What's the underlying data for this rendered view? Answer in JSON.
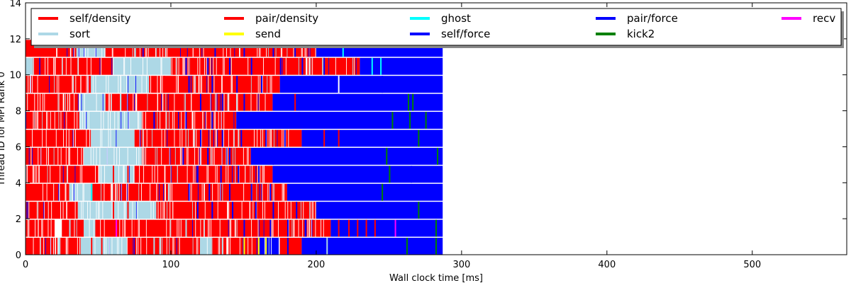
{
  "chart_data": {
    "type": "bar",
    "orientation": "horizontal-timeline",
    "title": "",
    "xlabel": "Wall clock time [ms]",
    "ylabel": "Thread ID for MPI Rank 0",
    "xlim": [
      0,
      565
    ],
    "ylim": [
      0,
      14
    ],
    "x_ticks": [
      0,
      100,
      200,
      300,
      400,
      500
    ],
    "y_ticks": [
      0,
      2,
      4,
      6,
      8,
      10,
      12,
      14
    ],
    "grid": false,
    "legend": {
      "placement": "top",
      "columns": 5,
      "entries": [
        {
          "name": "self/density",
          "color": "#ff0000"
        },
        {
          "name": "sort",
          "color": "#add8e6"
        },
        {
          "name": "pair/density",
          "color": "#ff0000"
        },
        {
          "name": "send",
          "color": "#ffff00"
        },
        {
          "name": "ghost",
          "color": "#00ffff"
        },
        {
          "name": "self/force",
          "color": "#0000ff"
        },
        {
          "name": "pair/force",
          "color": "#0000ff"
        },
        {
          "name": "kick2",
          "color": "#008000"
        },
        {
          "name": "recv",
          "color": "#ff00ff"
        }
      ]
    },
    "threads": [
      {
        "id": 0,
        "end": 287,
        "segments": [
          [
            0,
            22,
            "#ff0000"
          ],
          [
            22,
            24,
            "#add8e6"
          ],
          [
            24,
            38,
            "#ff0000"
          ],
          [
            38,
            70,
            "#add8e6"
          ],
          [
            70,
            120,
            "#ff0000"
          ],
          [
            120,
            128,
            "#add8e6"
          ],
          [
            128,
            160,
            "#ff0000"
          ],
          [
            160,
            175,
            "#0000ff"
          ],
          [
            175,
            190,
            "#ff0000"
          ],
          [
            190,
            287,
            "#0000ff"
          ]
        ],
        "ticks": [
          [
            45,
            "#ff0000"
          ],
          [
            52,
            "#ff0000"
          ],
          [
            88,
            "#add8e6"
          ],
          [
            92,
            "#add8e6"
          ],
          [
            135,
            "#add8e6"
          ],
          [
            150,
            "#ffff00"
          ],
          [
            160,
            "#ffff00"
          ],
          [
            165,
            "#ffff00"
          ],
          [
            180,
            "#0000ff"
          ],
          [
            207,
            "#add8e6"
          ],
          [
            262,
            "#008000"
          ],
          [
            282,
            "#008000"
          ]
        ]
      },
      {
        "id": 1,
        "end": 287,
        "segments": [
          [
            0,
            20,
            "#ff0000"
          ],
          [
            20,
            25,
            "#ffffff"
          ],
          [
            25,
            40,
            "#ff0000"
          ],
          [
            40,
            48,
            "#add8e6"
          ],
          [
            48,
            75,
            "#ff0000"
          ],
          [
            75,
            210,
            "#ff0000"
          ],
          [
            210,
            287,
            "#0000ff"
          ]
        ],
        "ticks": [
          [
            30,
            "#add8e6"
          ],
          [
            62,
            "#ff00ff"
          ],
          [
            110,
            "#add8e6"
          ],
          [
            150,
            "#0000ff"
          ],
          [
            168,
            "#0000ff"
          ],
          [
            180,
            "#0000ff"
          ],
          [
            192,
            "#0000ff"
          ],
          [
            215,
            "#ff0000"
          ],
          [
            222,
            "#ff0000"
          ],
          [
            228,
            "#ff0000"
          ],
          [
            234,
            "#ff0000"
          ],
          [
            240,
            "#ff0000"
          ],
          [
            254,
            "#ff00ff"
          ],
          [
            282,
            "#008000"
          ]
        ]
      },
      {
        "id": 2,
        "end": 287,
        "segments": [
          [
            0,
            36,
            "#ff0000"
          ],
          [
            36,
            90,
            "#add8e6"
          ],
          [
            90,
            200,
            "#ff0000"
          ],
          [
            200,
            287,
            "#0000ff"
          ]
        ],
        "ticks": [
          [
            60,
            "#ff0000"
          ],
          [
            70,
            "#ff0000"
          ],
          [
            118,
            "#0000ff"
          ],
          [
            128,
            "#0000ff"
          ],
          [
            142,
            "#0000ff"
          ],
          [
            158,
            "#0000ff"
          ],
          [
            170,
            "#0000ff"
          ],
          [
            186,
            "#0000ff"
          ],
          [
            270,
            "#008000"
          ]
        ]
      },
      {
        "id": 3,
        "end": 287,
        "segments": [
          [
            0,
            30,
            "#ff0000"
          ],
          [
            30,
            45,
            "#add8e6"
          ],
          [
            45,
            85,
            "#ff0000"
          ],
          [
            85,
            180,
            "#ff0000"
          ],
          [
            180,
            287,
            "#0000ff"
          ]
        ],
        "ticks": [
          [
            45,
            "#00ffff"
          ],
          [
            55,
            "#ff0000"
          ],
          [
            98,
            "#add8e6"
          ],
          [
            112,
            "#0000ff"
          ],
          [
            126,
            "#0000ff"
          ],
          [
            140,
            "#0000ff"
          ],
          [
            155,
            "#0000ff"
          ],
          [
            168,
            "#0000ff"
          ],
          [
            245,
            "#008000"
          ]
        ]
      },
      {
        "id": 4,
        "end": 287,
        "segments": [
          [
            0,
            50,
            "#ff0000"
          ],
          [
            50,
            75,
            "#add8e6"
          ],
          [
            75,
            170,
            "#ff0000"
          ],
          [
            170,
            287,
            "#0000ff"
          ]
        ],
        "ticks": [
          [
            60,
            "#ff0000"
          ],
          [
            70,
            "#ff0000"
          ],
          [
            118,
            "#0000ff"
          ],
          [
            134,
            "#0000ff"
          ],
          [
            146,
            "#0000ff"
          ],
          [
            160,
            "#0000ff"
          ],
          [
            250,
            "#008000"
          ],
          [
            265,
            "#0000ff"
          ]
        ]
      },
      {
        "id": 5,
        "end": 287,
        "segments": [
          [
            0,
            40,
            "#ff0000"
          ],
          [
            40,
            80,
            "#add8e6"
          ],
          [
            80,
            155,
            "#ff0000"
          ],
          [
            155,
            287,
            "#0000ff"
          ]
        ],
        "ticks": [
          [
            88,
            "#ff0000"
          ],
          [
            108,
            "#0000ff"
          ],
          [
            125,
            "#0000ff"
          ],
          [
            140,
            "#0000ff"
          ],
          [
            170,
            "#0000ff"
          ],
          [
            248,
            "#008000"
          ],
          [
            283,
            "#008000"
          ]
        ]
      },
      {
        "id": 6,
        "end": 287,
        "segments": [
          [
            0,
            45,
            "#ff0000"
          ],
          [
            45,
            75,
            "#add8e6"
          ],
          [
            75,
            190,
            "#ff0000"
          ],
          [
            190,
            287,
            "#0000ff"
          ]
        ],
        "ticks": [
          [
            82,
            "#ff0000"
          ],
          [
            120,
            "#0000ff"
          ],
          [
            135,
            "#0000ff"
          ],
          [
            148,
            "#0000ff"
          ],
          [
            165,
            "#0000ff"
          ],
          [
            178,
            "#0000ff"
          ],
          [
            205,
            "#ff0000"
          ],
          [
            215,
            "#ff0000"
          ],
          [
            270,
            "#008000"
          ]
        ]
      },
      {
        "id": 7,
        "end": 287,
        "segments": [
          [
            0,
            37,
            "#ff0000"
          ],
          [
            37,
            80,
            "#add8e6"
          ],
          [
            80,
            145,
            "#ff0000"
          ],
          [
            145,
            287,
            "#0000ff"
          ]
        ],
        "ticks": [
          [
            88,
            "#0000ff"
          ],
          [
            110,
            "#0000ff"
          ],
          [
            128,
            "#0000ff"
          ],
          [
            188,
            "#0000ff"
          ],
          [
            252,
            "#008000"
          ],
          [
            264,
            "#008000"
          ],
          [
            275,
            "#008000"
          ]
        ]
      },
      {
        "id": 8,
        "end": 287,
        "segments": [
          [
            0,
            37,
            "#ff0000"
          ],
          [
            37,
            55,
            "#add8e6"
          ],
          [
            55,
            170,
            "#ff0000"
          ],
          [
            170,
            287,
            "#0000ff"
          ]
        ],
        "ticks": [
          [
            65,
            "#add8e6"
          ],
          [
            120,
            "#0000ff"
          ],
          [
            135,
            "#0000ff"
          ],
          [
            150,
            "#0000ff"
          ],
          [
            185,
            "#ff0000"
          ],
          [
            263,
            "#008000"
          ],
          [
            266,
            "#008000"
          ]
        ]
      },
      {
        "id": 9,
        "end": 287,
        "segments": [
          [
            0,
            45,
            "#ff0000"
          ],
          [
            45,
            85,
            "#add8e6"
          ],
          [
            85,
            175,
            "#ff0000"
          ],
          [
            175,
            287,
            "#0000ff"
          ]
        ],
        "ticks": [
          [
            95,
            "#ff0000"
          ],
          [
            112,
            "#0000ff"
          ],
          [
            128,
            "#0000ff"
          ],
          [
            145,
            "#0000ff"
          ],
          [
            162,
            "#0000ff"
          ],
          [
            215,
            "#ffffff"
          ],
          [
            245,
            "#0000ff"
          ]
        ]
      },
      {
        "id": 10,
        "end": 287,
        "segments": [
          [
            0,
            5,
            "#add8e6"
          ],
          [
            5,
            60,
            "#ff0000"
          ],
          [
            60,
            100,
            "#add8e6"
          ],
          [
            100,
            230,
            "#ff0000"
          ],
          [
            230,
            287,
            "#0000ff"
          ]
        ],
        "ticks": [
          [
            16,
            "#ff0000"
          ],
          [
            110,
            "#0000ff"
          ],
          [
            125,
            "#0000ff"
          ],
          [
            140,
            "#0000ff"
          ],
          [
            155,
            "#0000ff"
          ],
          [
            175,
            "#0000ff"
          ],
          [
            190,
            "#0000ff"
          ],
          [
            205,
            "#0000ff"
          ],
          [
            238,
            "#00ffff"
          ],
          [
            244,
            "#00ffff"
          ]
        ]
      },
      {
        "id": 11,
        "end": 287,
        "segments": [
          [
            0,
            35,
            "#ff0000"
          ],
          [
            35,
            55,
            "#add8e6"
          ],
          [
            55,
            200,
            "#ff0000"
          ],
          [
            200,
            287,
            "#0000ff"
          ]
        ],
        "ticks": [
          [
            75,
            "#add8e6"
          ],
          [
            130,
            "#0000ff"
          ],
          [
            150,
            "#0000ff"
          ],
          [
            170,
            "#0000ff"
          ],
          [
            185,
            "#0000ff"
          ],
          [
            218,
            "#00ffff"
          ]
        ]
      }
    ]
  }
}
